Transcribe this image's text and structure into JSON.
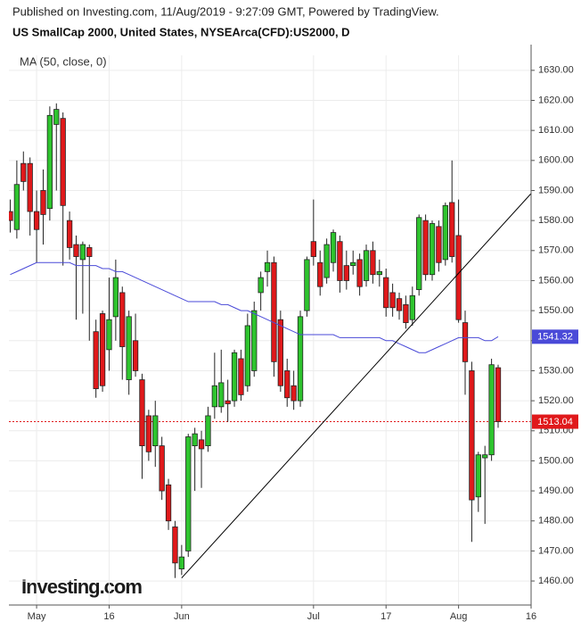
{
  "chart_data": {
    "type": "candlestick",
    "source": "Published on Investing.com, 11/Aug/2019 - 9:27:09 GMT, Powered by TradingView.",
    "title": "US SmallCap 2000, United States, NYSEArca(CFD):US2000, D",
    "indicator_label": "MA (50, close, 0)",
    "watermark": "Investing.com",
    "x": [
      -4,
      -3,
      -2,
      -1,
      0,
      1,
      2,
      3,
      4,
      5,
      6,
      7,
      8,
      9,
      10,
      11,
      12,
      13,
      14,
      15,
      16,
      17,
      18,
      19,
      20,
      21,
      22,
      23,
      24,
      25,
      26,
      27,
      28,
      29,
      30,
      31,
      32,
      33,
      34,
      35,
      36,
      37,
      38,
      39,
      40,
      41,
      42,
      43,
      44,
      45,
      46,
      47,
      48,
      49,
      50,
      51,
      52,
      53,
      54,
      55,
      56,
      57,
      58,
      59,
      60,
      61,
      62,
      63,
      64,
      65,
      66,
      67,
      68,
      69,
      70
    ],
    "open": [
      1583,
      1577,
      1599,
      1599,
      1583,
      1590,
      1584,
      1612,
      1614,
      1580,
      1572,
      1567,
      1571,
      1543,
      1549,
      1537,
      1548,
      1556,
      1527,
      1540,
      1527,
      1515,
      1505,
      1505,
      1492,
      1478,
      1464,
      1470,
      1505,
      1507,
      1505,
      1518,
      1518,
      1520,
      1520,
      1534,
      1525,
      1530,
      1556,
      1563,
      1566,
      1547,
      1530,
      1525,
      1520,
      1550,
      1573,
      1566,
      1561,
      1566,
      1573,
      1565,
      1565,
      1567,
      1560,
      1570,
      1562,
      1561,
      1556,
      1554,
      1552,
      1547,
      1557,
      1580,
      1562,
      1578,
      1567,
      1586,
      1575,
      1546,
      1530,
      1488,
      1501,
      1502,
      1531
    ],
    "high": [
      1587,
      1600,
      1603,
      1601,
      1590,
      1597,
      1618,
      1619,
      1616,
      1583,
      1575,
      1573,
      1572,
      1547,
      1550,
      1561,
      1567,
      1558,
      1550,
      1549,
      1529,
      1517,
      1520,
      1508,
      1494,
      1480,
      1472,
      1509,
      1511,
      1510,
      1518,
      1536,
      1537,
      1527,
      1537,
      1537,
      1549,
      1553,
      1563,
      1570,
      1568,
      1550,
      1534,
      1530,
      1550,
      1568,
      1587,
      1570,
      1574,
      1577,
      1575,
      1570,
      1570,
      1569,
      1572,
      1573,
      1567,
      1564,
      1559,
      1556,
      1555,
      1558,
      1582,
      1582,
      1580,
      1580,
      1586,
      1600,
      1587,
      1550,
      1533,
      1503,
      1505,
      1534,
      1532
    ],
    "low": [
      1576,
      1574,
      1590,
      1575,
      1566,
      1572,
      1580,
      1590,
      1565,
      1567,
      1547,
      1549,
      1540,
      1521,
      1523,
      1530,
      1540,
      1527,
      1522,
      1528,
      1494,
      1500,
      1498,
      1487,
      1477,
      1461,
      1462,
      1468,
      1490,
      1491,
      1503,
      1514,
      1516,
      1513,
      1518,
      1520,
      1523,
      1528,
      1550,
      1558,
      1528,
      1523,
      1518,
      1517,
      1518,
      1548,
      1565,
      1555,
      1559,
      1563,
      1556,
      1557,
      1562,
      1555,
      1558,
      1559,
      1558,
      1548,
      1548,
      1547,
      1544,
      1545,
      1555,
      1560,
      1560,
      1563,
      1565,
      1566,
      1546,
      1522,
      1473,
      1483,
      1479,
      1500,
      1511
    ],
    "close": [
      1580,
      1592,
      1593,
      1583,
      1577,
      1582,
      1615,
      1617,
      1585,
      1571,
      1568,
      1572,
      1568,
      1524,
      1525,
      1547,
      1561,
      1538,
      1548,
      1530,
      1505,
      1503,
      1515,
      1490,
      1480,
      1466,
      1468,
      1508,
      1509,
      1504,
      1515,
      1525,
      1526,
      1519,
      1536,
      1522,
      1545,
      1550,
      1561,
      1566,
      1533,
      1525,
      1521,
      1520,
      1548,
      1567,
      1568,
      1558,
      1572,
      1576,
      1560,
      1560,
      1566,
      1558,
      1570,
      1562,
      1563,
      1551,
      1551,
      1550,
      1546,
      1555,
      1581,
      1562,
      1579,
      1566,
      1585,
      1568,
      1547,
      1533,
      1487,
      1502,
      1502,
      1532,
      1513.04
    ],
    "up_color": "#2ec42e",
    "down_color": "#e0191b",
    "series": [
      {
        "name": "MA (50, close, 0)",
        "color": "#4a4ad8",
        "values": [
          1562,
          1563,
          1564,
          1565,
          1566,
          1566,
          1566,
          1566,
          1566,
          1566,
          1565,
          1565,
          1565,
          1565,
          1564,
          1564,
          1563,
          1563,
          1562,
          1561,
          1560,
          1559,
          1558,
          1557,
          1556,
          1555,
          1554,
          1553,
          1553,
          1553,
          1553,
          1553,
          1552,
          1552,
          1551,
          1550,
          1550,
          1549,
          1548,
          1547,
          1546,
          1545,
          1544,
          1543,
          1542,
          1542,
          1542,
          1542,
          1542,
          1542,
          1541,
          1541,
          1541,
          1541,
          1541,
          1541,
          1541,
          1540,
          1540,
          1539,
          1538,
          1537,
          1536,
          1536,
          1537,
          1538,
          1539,
          1540,
          1541,
          1541,
          1541,
          1541,
          1540,
          1540,
          1541.32
        ]
      }
    ],
    "trendline": {
      "x": [
        22,
        75
      ],
      "values": [
        1461,
        1589
      ],
      "color": "#000000"
    },
    "last_price": 1513.04,
    "last_price_color": "#e0191b",
    "ma_last": 1541.32,
    "xlim": [
      -4.2,
      75
    ],
    "xticks": [
      {
        "value": 0,
        "label": "May"
      },
      {
        "value": 11,
        "label": "16"
      },
      {
        "value": 22,
        "label": "Jun"
      },
      {
        "value": 42,
        "label": "Jul"
      },
      {
        "value": 53,
        "label": "17"
      },
      {
        "value": 64,
        "label": "Aug"
      },
      {
        "value": 75,
        "label": "16"
      }
    ],
    "ylim": [
      1452,
      1635
    ],
    "yticks": [
      {
        "value": 1460,
        "label": "1460.00"
      },
      {
        "value": 1470,
        "label": "1470.00"
      },
      {
        "value": 1480,
        "label": "1480.00"
      },
      {
        "value": 1490,
        "label": "1490.00"
      },
      {
        "value": 1500,
        "label": "1500.00"
      },
      {
        "value": 1510,
        "label": "1510.00"
      },
      {
        "value": 1520,
        "label": "1520.00"
      },
      {
        "value": 1530,
        "label": "1530.00"
      },
      {
        "value": 1540,
        "label": "1540.00"
      },
      {
        "value": 1550,
        "label": "1550.00"
      },
      {
        "value": 1560,
        "label": "1560.00"
      },
      {
        "value": 1570,
        "label": "1570.00"
      },
      {
        "value": 1580,
        "label": "1580.00"
      },
      {
        "value": 1590,
        "label": "1590.00"
      },
      {
        "value": 1600,
        "label": "1600.00"
      },
      {
        "value": 1610,
        "label": "1610.00"
      },
      {
        "value": 1620,
        "label": "1620.00"
      },
      {
        "value": 1630,
        "label": "1630.00"
      }
    ],
    "grid": true
  }
}
